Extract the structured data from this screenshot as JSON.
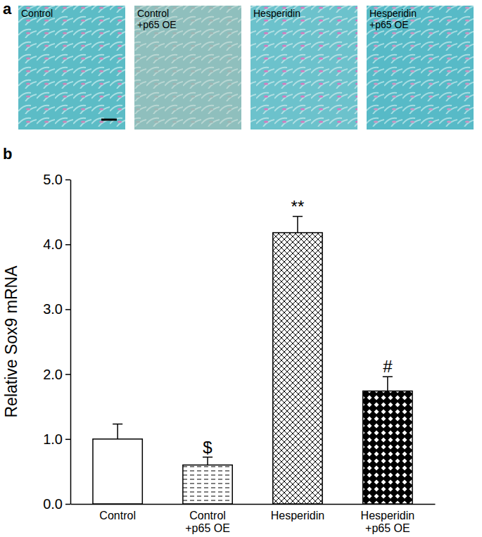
{
  "chart_data": {
    "type": "bar",
    "y_label": "Relative Sox9 mRNA",
    "categories": [
      "Control",
      "Control\n+p65 OE",
      "Hesperidin",
      "Hesperidin\n+p65 OE"
    ],
    "values": [
      1.0,
      0.6,
      4.18,
      1.74
    ],
    "errors": [
      0.23,
      0.12,
      0.25,
      0.22
    ],
    "annotations": [
      null,
      "$",
      "**",
      "#"
    ],
    "color": "#000000",
    "ylim": [
      0,
      5
    ],
    "yticks": [
      {
        "value": 0,
        "label": "0.0"
      },
      {
        "value": 1,
        "label": "1.0"
      },
      {
        "value": 2,
        "label": "2.0"
      },
      {
        "value": 3,
        "label": "3.0"
      },
      {
        "value": 4,
        "label": "4.0"
      },
      {
        "value": 5,
        "label": "5.0"
      }
    ],
    "grid": false
  },
  "figure": {
    "panel_labels": [
      "a",
      "b"
    ],
    "images": [
      "Control",
      "Control\n+p65 OE",
      "Hesperidin",
      "Hesperidin\n+p65 OE"
    ]
  }
}
